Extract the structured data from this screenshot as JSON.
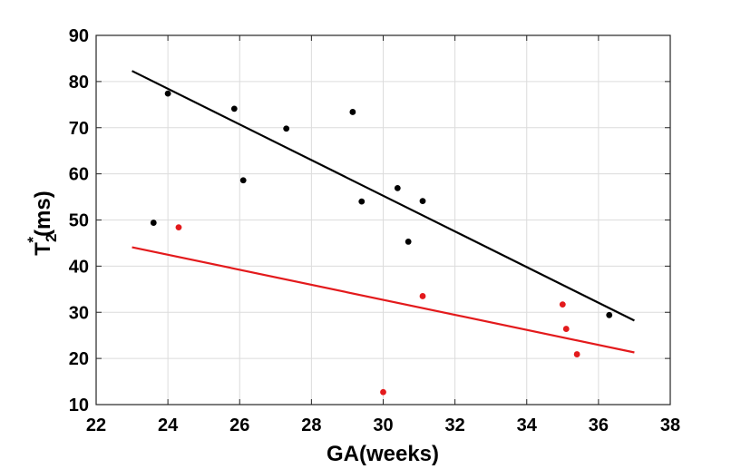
{
  "chart_data": {
    "type": "scatter",
    "title": "",
    "xlabel": "GA(weeks)",
    "ylabel": {
      "base": "T",
      "sub": "2",
      "sup": "*",
      "rest": "(ms)"
    },
    "xlim": [
      22,
      38
    ],
    "ylim": [
      10,
      90
    ],
    "xticks": [
      22,
      24,
      26,
      28,
      30,
      32,
      34,
      36,
      38
    ],
    "yticks": [
      10,
      20,
      30,
      40,
      50,
      60,
      70,
      80,
      90
    ],
    "grid": true,
    "series": [
      {
        "name": "black",
        "color": "#000000",
        "points": [
          {
            "x": 23.6,
            "y": 49.4
          },
          {
            "x": 24.0,
            "y": 77.4
          },
          {
            "x": 25.85,
            "y": 74.1
          },
          {
            "x": 26.1,
            "y": 58.6
          },
          {
            "x": 27.3,
            "y": 69.8
          },
          {
            "x": 29.15,
            "y": 73.4
          },
          {
            "x": 29.4,
            "y": 54.0
          },
          {
            "x": 30.4,
            "y": 56.9
          },
          {
            "x": 30.7,
            "y": 45.3
          },
          {
            "x": 31.1,
            "y": 54.1
          },
          {
            "x": 36.3,
            "y": 29.4
          }
        ],
        "fit": {
          "x": [
            23.0,
            37.0
          ],
          "y": [
            82.3,
            28.2
          ]
        }
      },
      {
        "name": "red",
        "color": "#e31a1c",
        "points": [
          {
            "x": 24.3,
            "y": 48.4
          },
          {
            "x": 30.0,
            "y": 12.7
          },
          {
            "x": 31.1,
            "y": 33.5
          },
          {
            "x": 35.0,
            "y": 31.7
          },
          {
            "x": 35.1,
            "y": 26.4
          },
          {
            "x": 35.4,
            "y": 20.9
          }
        ],
        "fit": {
          "x": [
            23.0,
            37.0
          ],
          "y": [
            44.1,
            21.3
          ]
        }
      }
    ]
  }
}
